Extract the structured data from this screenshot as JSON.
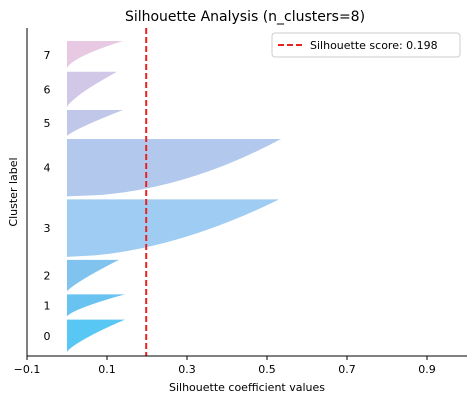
{
  "chart_data": {
    "type": "area",
    "title": "Silhouette Analysis (n_clusters=8)",
    "xlabel": "Silhouette coefficient values",
    "ylabel": "Cluster label",
    "xlim": [
      -0.1,
      1.0
    ],
    "xticks": [
      -0.1,
      0.1,
      0.3,
      0.5,
      0.7,
      0.9
    ],
    "xtick_labels": [
      "−0.1",
      "0.1",
      "0.3",
      "0.5",
      "0.7",
      "0.9"
    ],
    "grid": false,
    "legend_position": "top-right",
    "average_line": {
      "label": "Silhouette score: 0.198",
      "value": 0.198,
      "color": "#e8231f",
      "style": "dashed"
    },
    "clusters": [
      {
        "label": "0",
        "size": 35,
        "max": 0.145,
        "shape": 1.3,
        "color": "#3cbdf2"
      },
      {
        "label": "1",
        "size": 24,
        "max": 0.145,
        "shape": 1.4,
        "color": "#4db8ee"
      },
      {
        "label": "2",
        "size": 34,
        "max": 0.13,
        "shape": 1.2,
        "color": "#6ab8ec"
      },
      {
        "label": "3",
        "size": 62,
        "max": 0.53,
        "shape": 0.55,
        "color": "#8ec3f0"
      },
      {
        "label": "4",
        "size": 62,
        "max": 0.535,
        "shape": 0.5,
        "color": "#a5c0ea"
      },
      {
        "label": "5",
        "size": 28,
        "max": 0.14,
        "shape": 1.2,
        "color": "#b5bde5"
      },
      {
        "label": "6",
        "size": 38,
        "max": 0.125,
        "shape": 1.3,
        "color": "#c9bde3"
      },
      {
        "label": "7",
        "size": 30,
        "max": 0.14,
        "shape": 1.6,
        "color": "#e4bfdf"
      }
    ]
  }
}
